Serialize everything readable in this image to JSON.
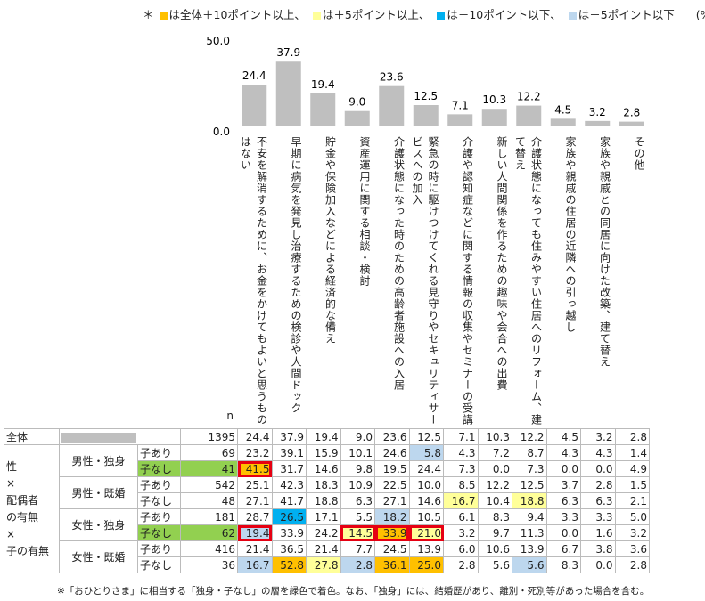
{
  "legend": {
    "prefix": "＊",
    "items": [
      {
        "color": "#ffc000",
        "label": "は全体＋10ポイント以上、"
      },
      {
        "color": "#ffff99",
        "label": "は＋5ポイント以上、"
      },
      {
        "color": "#00b0f0",
        "label": "は－10ポイント以下、"
      },
      {
        "color": "#bdd7ee",
        "label": "は－5ポイント以下"
      }
    ],
    "unit": "(%)"
  },
  "chart_data": {
    "type": "bar",
    "ylim": [
      0,
      50
    ],
    "yticks": [
      "50.0",
      "0.0"
    ],
    "categories": [
      "不安を解消するために、お金をかけてもよいと思うものはない",
      "早期に病気を発見し治療するための検診や人間ドック",
      "貯金や保険加入などによる経済的な備え",
      "資産運用に関する相談・検討",
      "介護状態になった時のための高齢者施設への入居",
      "緊急の時に駆けつけてくれる見守りやセキュリティサービスへの加入",
      "介護や認知症などに関する情報の収集やセミナーの受講",
      "新しい人間関係を作るための趣味や会合への出費",
      "介護状態になっても住みやすい住居へのリフォーム、建て替え",
      "家族や親戚の住居の近隣への引っ越し",
      "家族や親戚との同居に向けた改築、建て替え",
      "その他"
    ],
    "values": [
      24.4,
      37.9,
      19.4,
      9.0,
      23.6,
      12.5,
      7.1,
      10.3,
      12.2,
      4.5,
      3.2,
      2.8
    ],
    "value_labels": [
      "24.4",
      "37.9",
      "19.4",
      "9.0",
      "23.6",
      "12.5",
      "7.1",
      "10.3",
      "12.2",
      "4.5",
      "3.2",
      "2.8"
    ],
    "bar_color": "#bfbfbf"
  },
  "table": {
    "n_header": "n",
    "total": {
      "label": "全体",
      "n": "1395",
      "values": [
        "24.4",
        "37.9",
        "19.4",
        "9.0",
        "23.6",
        "12.5",
        "7.1",
        "10.3",
        "12.2",
        "4.5",
        "3.2",
        "2.8"
      ]
    },
    "side_label": [
      "性",
      "×",
      "配偶者",
      "の有無",
      "×",
      "子の有無"
    ],
    "groups": [
      {
        "label": "男性・独身",
        "rows": [
          {
            "sub": "子あり",
            "n": "69",
            "values": [
              "23.2",
              "39.1",
              "15.9",
              "10.1",
              "24.6",
              "5.8",
              "4.3",
              "7.2",
              "8.7",
              "4.3",
              "4.3",
              "1.4"
            ],
            "fills": [
              "",
              "",
              "",
              "",
              "",
              "#bdd7ee",
              "",
              "",
              "",
              "",
              "",
              ""
            ]
          },
          {
            "sub": "子なし",
            "n": "41",
            "values": [
              "41.5",
              "31.7",
              "14.6",
              "9.8",
              "19.5",
              "24.4",
              "7.3",
              "0.0",
              "7.3",
              "0.0",
              "0.0",
              "4.9"
            ],
            "fills": [
              "#ffc000",
              "",
              "",
              "",
              "",
              "",
              "",
              "",
              "",
              "",
              "",
              ""
            ],
            "green": true
          }
        ]
      },
      {
        "label": "男性・既婚",
        "rows": [
          {
            "sub": "子あり",
            "n": "542",
            "values": [
              "25.1",
              "42.3",
              "18.3",
              "10.9",
              "22.5",
              "10.0",
              "8.5",
              "12.2",
              "12.5",
              "3.7",
              "2.8",
              "1.5"
            ],
            "fills": [
              "",
              "",
              "",
              "",
              "",
              "",
              "",
              "",
              "",
              "",
              "",
              ""
            ]
          },
          {
            "sub": "子なし",
            "n": "48",
            "values": [
              "27.1",
              "41.7",
              "18.8",
              "6.3",
              "27.1",
              "14.6",
              "16.7",
              "10.4",
              "18.8",
              "6.3",
              "6.3",
              "2.1"
            ],
            "fills": [
              "",
              "",
              "",
              "",
              "",
              "",
              "#ffff99",
              "",
              "#ffff99",
              "",
              "",
              ""
            ]
          }
        ]
      },
      {
        "label": "女性・独身",
        "rows": [
          {
            "sub": "子あり",
            "n": "181",
            "values": [
              "28.7",
              "26.5",
              "17.1",
              "5.5",
              "18.2",
              "10.5",
              "6.1",
              "8.3",
              "9.4",
              "3.3",
              "3.3",
              "5.0"
            ],
            "fills": [
              "",
              "#00b0f0",
              "",
              "",
              "#bdd7ee",
              "",
              "",
              "",
              "",
              "",
              "",
              ""
            ]
          },
          {
            "sub": "子なし",
            "n": "62",
            "values": [
              "19.4",
              "33.9",
              "24.2",
              "14.5",
              "33.9",
              "21.0",
              "3.2",
              "9.7",
              "11.3",
              "0.0",
              "1.6",
              "3.2"
            ],
            "fills": [
              "#bdd7ee",
              "",
              "",
              "#ffff99",
              "#ffc000",
              "#ffff99",
              "",
              "",
              "",
              "",
              "",
              ""
            ],
            "green": true
          }
        ]
      },
      {
        "label": "女性・既婚",
        "rows": [
          {
            "sub": "子あり",
            "n": "416",
            "values": [
              "21.4",
              "36.5",
              "21.4",
              "7.7",
              "24.5",
              "13.9",
              "6.0",
              "10.6",
              "13.9",
              "6.7",
              "3.8",
              "3.6"
            ],
            "fills": [
              "",
              "",
              "",
              "",
              "",
              "",
              "",
              "",
              "",
              "",
              "",
              ""
            ]
          },
          {
            "sub": "子なし",
            "n": "36",
            "values": [
              "16.7",
              "52.8",
              "27.8",
              "2.8",
              "36.1",
              "25.0",
              "2.8",
              "5.6",
              "5.6",
              "8.3",
              "0.0",
              "2.8"
            ],
            "fills": [
              "#bdd7ee",
              "#ffc000",
              "#ffff99",
              "#bdd7ee",
              "#ffc000",
              "#ffc000",
              "",
              "",
              "#bdd7ee",
              "",
              "",
              ""
            ]
          }
        ]
      }
    ]
  },
  "note": "※「おひとりさま」に相当する「独身・子なし」の層を緑色で着色。なお、「独身」には、結婚歴があり、離別・死別等があった場合を含む。"
}
